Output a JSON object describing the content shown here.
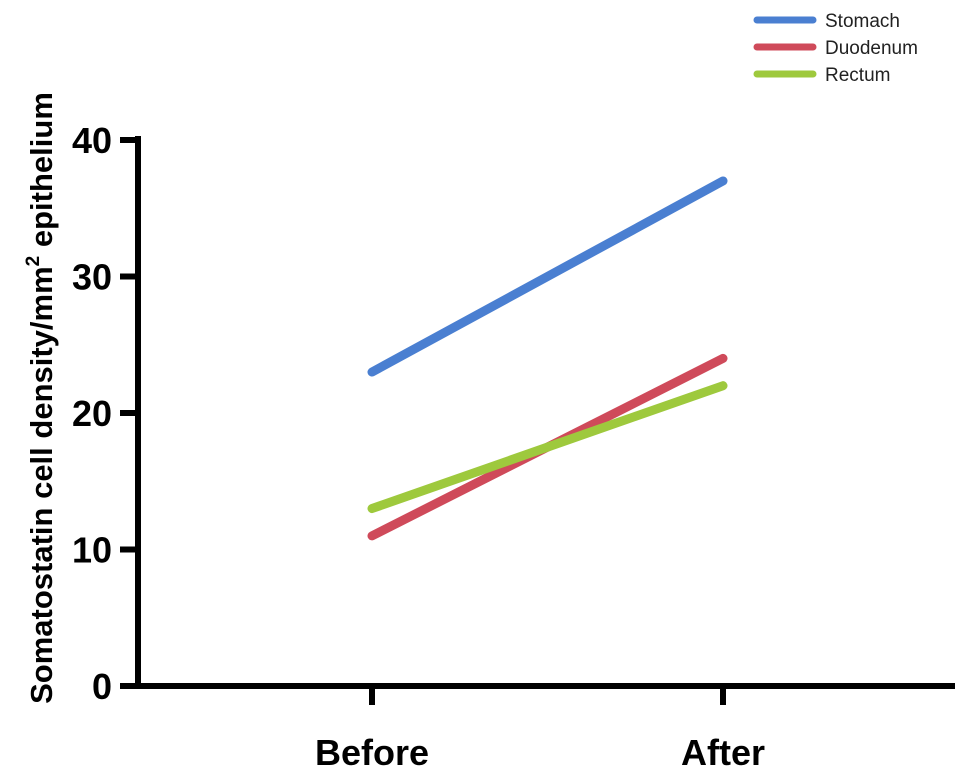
{
  "chart_data": {
    "type": "line",
    "categories": [
      "Before",
      "After"
    ],
    "series": [
      {
        "name": "Stomach",
        "values": [
          23,
          37
        ],
        "color": "#4a7fd1"
      },
      {
        "name": "Duodenum",
        "values": [
          11,
          24
        ],
        "color": "#cf4a5a"
      },
      {
        "name": "Rectum",
        "values": [
          13,
          22
        ],
        "color": "#9ec93d"
      }
    ],
    "ylabel_main": "Somatostatin cell density/mm",
    "ylabel_sup": "2",
    "ylabel_tail": " epithelium",
    "ylim": [
      0,
      40
    ],
    "yticks": [
      "0",
      "10",
      "20",
      "30",
      "40"
    ],
    "grid": false,
    "legend_position": "top-right"
  }
}
